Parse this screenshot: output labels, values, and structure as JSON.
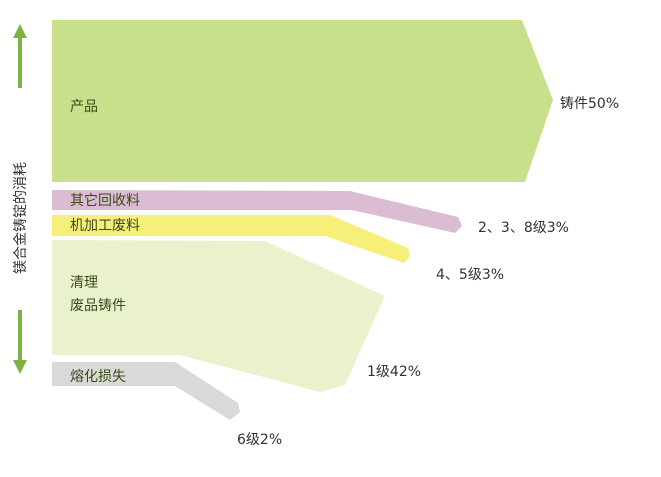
{
  "axis_label": "镁合金铸锭的消耗",
  "flows": [
    {
      "id": "product",
      "label": "产品",
      "output": "铸件50%",
      "color": "#c8e08c"
    },
    {
      "id": "other_recycle",
      "label": "其它回收料",
      "output": "2、3、8级3%",
      "color": "#dcbcd2"
    },
    {
      "id": "machining",
      "label": "机加工废料",
      "output": "4、5级3%",
      "color": "#f6f07a"
    },
    {
      "id": "cleaning",
      "label_line1": "清理",
      "label_line2": "废品铸件",
      "output": "1级42%",
      "color": "#e9f2cc"
    },
    {
      "id": "melt_loss",
      "label": "熔化损失",
      "output": "6级2%",
      "color": "#d9d9d9"
    }
  ],
  "arrow_color": "#7cb342"
}
